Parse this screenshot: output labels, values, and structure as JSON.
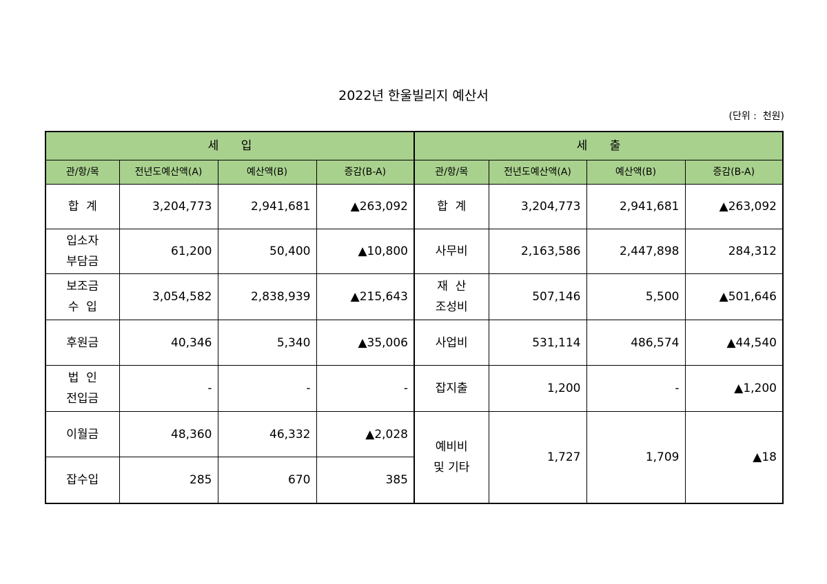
{
  "header": {
    "title": "2022년 한울빌리지 예산서",
    "unit": "(단위 :  천원)"
  },
  "table": {
    "sections": [
      "세      입",
      "세      출"
    ],
    "columns": [
      "관/항/목",
      "전년도예산액(A)",
      "예산액(B)",
      "증감(B-A)"
    ],
    "income": [
      [
        "합  계",
        "3,204,773",
        "2,941,681",
        "▲263,092"
      ],
      [
        "입소자\n부담금",
        "61,200",
        "50,400",
        "▲10,800"
      ],
      [
        "보조금\n수  입",
        "3,054,582",
        "2,838,939",
        "▲215,643"
      ],
      [
        "후원금",
        "40,346",
        "5,340",
        "▲35,006"
      ],
      [
        "법  인\n전입금",
        "-",
        "-",
        "-"
      ],
      [
        "이월금",
        "48,360",
        "46,332",
        "▲2,028"
      ],
      [
        "잡수입",
        "285",
        "670",
        "385"
      ]
    ],
    "expense": [
      [
        "합  계",
        "3,204,773",
        "2,941,681",
        "▲263,092"
      ],
      [
        "사무비",
        "2,163,586",
        "2,447,898",
        "284,312"
      ],
      [
        "재  산\n조성비",
        "507,146",
        "5,500",
        "▲501,646"
      ],
      [
        "사업비",
        "531,114",
        "486,574",
        "▲44,540"
      ],
      [
        "잡지출",
        "1,200",
        "-",
        "▲1,200"
      ],
      [
        "예비비\n및 기타",
        "1,727",
        "1,709",
        "▲18"
      ]
    ]
  }
}
